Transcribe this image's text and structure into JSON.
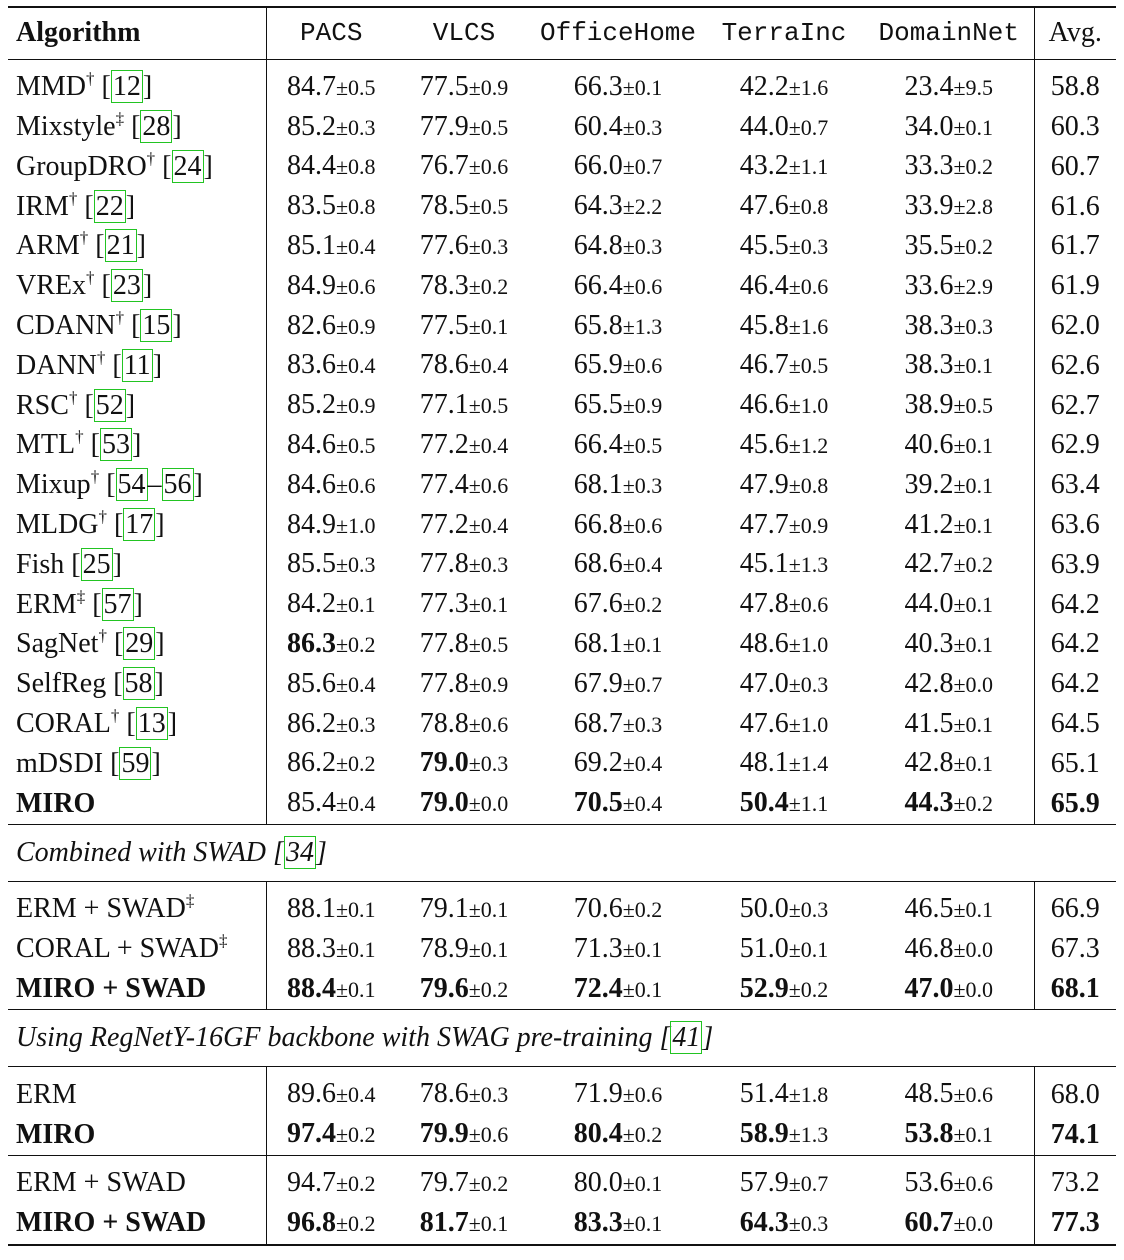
{
  "header": {
    "algorithm": "Algorithm",
    "columns": [
      "PACS",
      "VLCS",
      "OfficeHome",
      "TerraInc",
      "DomainNet"
    ],
    "avg": "Avg."
  },
  "groups": [
    {
      "title": "",
      "rows": [
        {
          "name": "MMD",
          "mark": "†",
          "refs": [
            "12"
          ],
          "vals": [
            [
              "84.7",
              "±0.5",
              false
            ],
            [
              "77.5",
              "±0.9",
              false
            ],
            [
              "66.3",
              "±0.1",
              false
            ],
            [
              "42.2",
              "±1.6",
              false
            ],
            [
              "23.4",
              "±9.5",
              false
            ]
          ],
          "avg": "58.8",
          "avg_bold": false,
          "name_bold": false
        },
        {
          "name": "Mixstyle",
          "mark": "‡",
          "refs": [
            "28"
          ],
          "vals": [
            [
              "85.2",
              "±0.3",
              false
            ],
            [
              "77.9",
              "±0.5",
              false
            ],
            [
              "60.4",
              "±0.3",
              false
            ],
            [
              "44.0",
              "±0.7",
              false
            ],
            [
              "34.0",
              "±0.1",
              false
            ]
          ],
          "avg": "60.3",
          "avg_bold": false,
          "name_bold": false
        },
        {
          "name": "GroupDRO",
          "mark": "†",
          "refs": [
            "24"
          ],
          "vals": [
            [
              "84.4",
              "±0.8",
              false
            ],
            [
              "76.7",
              "±0.6",
              false
            ],
            [
              "66.0",
              "±0.7",
              false
            ],
            [
              "43.2",
              "±1.1",
              false
            ],
            [
              "33.3",
              "±0.2",
              false
            ]
          ],
          "avg": "60.7",
          "avg_bold": false,
          "name_bold": false
        },
        {
          "name": "IRM",
          "mark": "†",
          "refs": [
            "22"
          ],
          "vals": [
            [
              "83.5",
              "±0.8",
              false
            ],
            [
              "78.5",
              "±0.5",
              false
            ],
            [
              "64.3",
              "±2.2",
              false
            ],
            [
              "47.6",
              "±0.8",
              false
            ],
            [
              "33.9",
              "±2.8",
              false
            ]
          ],
          "avg": "61.6",
          "avg_bold": false,
          "name_bold": false
        },
        {
          "name": "ARM",
          "mark": "†",
          "refs": [
            "21"
          ],
          "vals": [
            [
              "85.1",
              "±0.4",
              false
            ],
            [
              "77.6",
              "±0.3",
              false
            ],
            [
              "64.8",
              "±0.3",
              false
            ],
            [
              "45.5",
              "±0.3",
              false
            ],
            [
              "35.5",
              "±0.2",
              false
            ]
          ],
          "avg": "61.7",
          "avg_bold": false,
          "name_bold": false
        },
        {
          "name": "VREx",
          "mark": "†",
          "refs": [
            "23"
          ],
          "vals": [
            [
              "84.9",
              "±0.6",
              false
            ],
            [
              "78.3",
              "±0.2",
              false
            ],
            [
              "66.4",
              "±0.6",
              false
            ],
            [
              "46.4",
              "±0.6",
              false
            ],
            [
              "33.6",
              "±2.9",
              false
            ]
          ],
          "avg": "61.9",
          "avg_bold": false,
          "name_bold": false
        },
        {
          "name": "CDANN",
          "mark": "†",
          "refs": [
            "15"
          ],
          "vals": [
            [
              "82.6",
              "±0.9",
              false
            ],
            [
              "77.5",
              "±0.1",
              false
            ],
            [
              "65.8",
              "±1.3",
              false
            ],
            [
              "45.8",
              "±1.6",
              false
            ],
            [
              "38.3",
              "±0.3",
              false
            ]
          ],
          "avg": "62.0",
          "avg_bold": false,
          "name_bold": false
        },
        {
          "name": "DANN",
          "mark": "†",
          "refs": [
            "11"
          ],
          "vals": [
            [
              "83.6",
              "±0.4",
              false
            ],
            [
              "78.6",
              "±0.4",
              false
            ],
            [
              "65.9",
              "±0.6",
              false
            ],
            [
              "46.7",
              "±0.5",
              false
            ],
            [
              "38.3",
              "±0.1",
              false
            ]
          ],
          "avg": "62.6",
          "avg_bold": false,
          "name_bold": false
        },
        {
          "name": "RSC",
          "mark": "†",
          "refs": [
            "52"
          ],
          "vals": [
            [
              "85.2",
              "±0.9",
              false
            ],
            [
              "77.1",
              "±0.5",
              false
            ],
            [
              "65.5",
              "±0.9",
              false
            ],
            [
              "46.6",
              "±1.0",
              false
            ],
            [
              "38.9",
              "±0.5",
              false
            ]
          ],
          "avg": "62.7",
          "avg_bold": false,
          "name_bold": false
        },
        {
          "name": "MTL",
          "mark": "†",
          "refs": [
            "53"
          ],
          "vals": [
            [
              "84.6",
              "±0.5",
              false
            ],
            [
              "77.2",
              "±0.4",
              false
            ],
            [
              "66.4",
              "±0.5",
              false
            ],
            [
              "45.6",
              "±1.2",
              false
            ],
            [
              "40.6",
              "±0.1",
              false
            ]
          ],
          "avg": "62.9",
          "avg_bold": false,
          "name_bold": false
        },
        {
          "name": "Mixup",
          "mark": "†",
          "refs": [
            "54",
            "–",
            "56"
          ],
          "vals": [
            [
              "84.6",
              "±0.6",
              false
            ],
            [
              "77.4",
              "±0.6",
              false
            ],
            [
              "68.1",
              "±0.3",
              false
            ],
            [
              "47.9",
              "±0.8",
              false
            ],
            [
              "39.2",
              "±0.1",
              false
            ]
          ],
          "avg": "63.4",
          "avg_bold": false,
          "name_bold": false
        },
        {
          "name": "MLDG",
          "mark": "†",
          "refs": [
            "17"
          ],
          "vals": [
            [
              "84.9",
              "±1.0",
              false
            ],
            [
              "77.2",
              "±0.4",
              false
            ],
            [
              "66.8",
              "±0.6",
              false
            ],
            [
              "47.7",
              "±0.9",
              false
            ],
            [
              "41.2",
              "±0.1",
              false
            ]
          ],
          "avg": "63.6",
          "avg_bold": false,
          "name_bold": false
        },
        {
          "name": "Fish",
          "mark": "",
          "refs": [
            "25"
          ],
          "vals": [
            [
              "85.5",
              "±0.3",
              false
            ],
            [
              "77.8",
              "±0.3",
              false
            ],
            [
              "68.6",
              "±0.4",
              false
            ],
            [
              "45.1",
              "±1.3",
              false
            ],
            [
              "42.7",
              "±0.2",
              false
            ]
          ],
          "avg": "63.9",
          "avg_bold": false,
          "name_bold": false
        },
        {
          "name": "ERM",
          "mark": "‡",
          "refs": [
            "57"
          ],
          "vals": [
            [
              "84.2",
              "±0.1",
              false
            ],
            [
              "77.3",
              "±0.1",
              false
            ],
            [
              "67.6",
              "±0.2",
              false
            ],
            [
              "47.8",
              "±0.6",
              false
            ],
            [
              "44.0",
              "±0.1",
              false
            ]
          ],
          "avg": "64.2",
          "avg_bold": false,
          "name_bold": false
        },
        {
          "name": "SagNet",
          "mark": "†",
          "refs": [
            "29"
          ],
          "vals": [
            [
              "86.3",
              "±0.2",
              true
            ],
            [
              "77.8",
              "±0.5",
              false
            ],
            [
              "68.1",
              "±0.1",
              false
            ],
            [
              "48.6",
              "±1.0",
              false
            ],
            [
              "40.3",
              "±0.1",
              false
            ]
          ],
          "avg": "64.2",
          "avg_bold": false,
          "name_bold": false
        },
        {
          "name": "SelfReg",
          "mark": "",
          "refs": [
            "58"
          ],
          "vals": [
            [
              "85.6",
              "±0.4",
              false
            ],
            [
              "77.8",
              "±0.9",
              false
            ],
            [
              "67.9",
              "±0.7",
              false
            ],
            [
              "47.0",
              "±0.3",
              false
            ],
            [
              "42.8",
              "±0.0",
              false
            ]
          ],
          "avg": "64.2",
          "avg_bold": false,
          "name_bold": false
        },
        {
          "name": "CORAL",
          "mark": "†",
          "refs": [
            "13"
          ],
          "vals": [
            [
              "86.2",
              "±0.3",
              false
            ],
            [
              "78.8",
              "±0.6",
              false
            ],
            [
              "68.7",
              "±0.3",
              false
            ],
            [
              "47.6",
              "±1.0",
              false
            ],
            [
              "41.5",
              "±0.1",
              false
            ]
          ],
          "avg": "64.5",
          "avg_bold": false,
          "name_bold": false
        },
        {
          "name": "mDSDI",
          "mark": "",
          "refs": [
            "59"
          ],
          "vals": [
            [
              "86.2",
              "±0.2",
              false
            ],
            [
              "79.0",
              "±0.3",
              true
            ],
            [
              "69.2",
              "±0.4",
              false
            ],
            [
              "48.1",
              "±1.4",
              false
            ],
            [
              "42.8",
              "±0.1",
              false
            ]
          ],
          "avg": "65.1",
          "avg_bold": false,
          "name_bold": false
        },
        {
          "name": "MIRO",
          "mark": "",
          "refs": [],
          "vals": [
            [
              "85.4",
              "±0.4",
              false
            ],
            [
              "79.0",
              "±0.0",
              true
            ],
            [
              "70.5",
              "±0.4",
              true
            ],
            [
              "50.4",
              "±1.1",
              true
            ],
            [
              "44.3",
              "±0.2",
              true
            ]
          ],
          "avg": "65.9",
          "avg_bold": true,
          "name_bold": true
        }
      ]
    },
    {
      "title": "Combined with SWAD [",
      "title_ref": "34",
      "title_end": "]",
      "rows": [
        {
          "name": "ERM + SWAD",
          "mark": "‡",
          "refs": [],
          "vals": [
            [
              "88.1",
              "±0.1",
              false
            ],
            [
              "79.1",
              "±0.1",
              false
            ],
            [
              "70.6",
              "±0.2",
              false
            ],
            [
              "50.0",
              "±0.3",
              false
            ],
            [
              "46.5",
              "±0.1",
              false
            ]
          ],
          "avg": "66.9",
          "avg_bold": false,
          "name_bold": false
        },
        {
          "name": "CORAL + SWAD",
          "mark": "‡",
          "refs": [],
          "vals": [
            [
              "88.3",
              "±0.1",
              false
            ],
            [
              "78.9",
              "±0.1",
              false
            ],
            [
              "71.3",
              "±0.1",
              false
            ],
            [
              "51.0",
              "±0.1",
              false
            ],
            [
              "46.8",
              "±0.0",
              false
            ]
          ],
          "avg": "67.3",
          "avg_bold": false,
          "name_bold": false
        },
        {
          "name": "MIRO + SWAD",
          "mark": "",
          "refs": [],
          "vals": [
            [
              "88.4",
              "±0.1",
              true
            ],
            [
              "79.6",
              "±0.2",
              true
            ],
            [
              "72.4",
              "±0.1",
              true
            ],
            [
              "52.9",
              "±0.2",
              true
            ],
            [
              "47.0",
              "±0.0",
              true
            ]
          ],
          "avg": "68.1",
          "avg_bold": true,
          "name_bold": true
        }
      ]
    },
    {
      "title": "Using RegNetY-16GF backbone with SWAG pre-training [",
      "title_ref": "41",
      "title_end": "]",
      "rows": [
        {
          "name": "ERM",
          "mark": "",
          "refs": [],
          "vals": [
            [
              "89.6",
              "±0.4",
              false
            ],
            [
              "78.6",
              "±0.3",
              false
            ],
            [
              "71.9",
              "±0.6",
              false
            ],
            [
              "51.4",
              "±1.8",
              false
            ],
            [
              "48.5",
              "±0.6",
              false
            ]
          ],
          "avg": "68.0",
          "avg_bold": false,
          "name_bold": false
        },
        {
          "name": "MIRO",
          "mark": "",
          "refs": [],
          "vals": [
            [
              "97.4",
              "±0.2",
              true
            ],
            [
              "79.9",
              "±0.6",
              true
            ],
            [
              "80.4",
              "±0.2",
              true
            ],
            [
              "58.9",
              "±1.3",
              true
            ],
            [
              "53.8",
              "±0.1",
              true
            ]
          ],
          "avg": "74.1",
          "avg_bold": true,
          "name_bold": true
        }
      ],
      "subrows": [
        {
          "name": "ERM + SWAD",
          "mark": "",
          "refs": [],
          "vals": [
            [
              "94.7",
              "±0.2",
              false
            ],
            [
              "79.7",
              "±0.2",
              false
            ],
            [
              "80.0",
              "±0.1",
              false
            ],
            [
              "57.9",
              "±0.7",
              false
            ],
            [
              "53.6",
              "±0.6",
              false
            ]
          ],
          "avg": "73.2",
          "avg_bold": false,
          "name_bold": false
        },
        {
          "name": "MIRO + SWAD",
          "mark": "",
          "refs": [],
          "vals": [
            [
              "96.8",
              "±0.2",
              true
            ],
            [
              "81.7",
              "±0.1",
              true
            ],
            [
              "83.3",
              "±0.1",
              true
            ],
            [
              "64.3",
              "±0.3",
              true
            ],
            [
              "60.7",
              "±0.0",
              true
            ]
          ],
          "avg": "77.3",
          "avg_bold": true,
          "name_bold": true
        }
      ]
    }
  ]
}
